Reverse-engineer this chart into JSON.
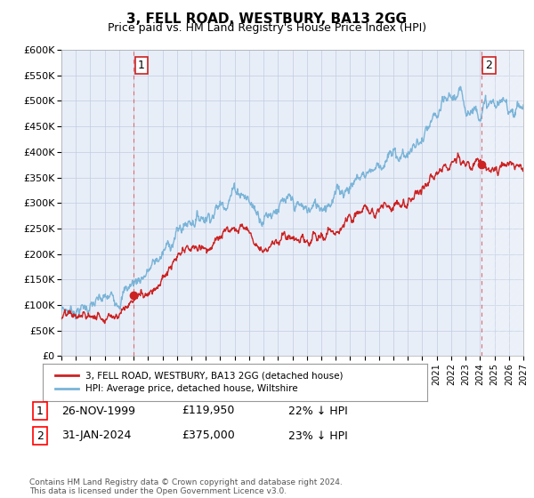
{
  "title": "3, FELL ROAD, WESTBURY, BA13 2GG",
  "subtitle": "Price paid vs. HM Land Registry's House Price Index (HPI)",
  "legend_line1": "3, FELL ROAD, WESTBURY, BA13 2GG (detached house)",
  "legend_line2": "HPI: Average price, detached house, Wiltshire",
  "footer": "Contains HM Land Registry data © Crown copyright and database right 2024.\nThis data is licensed under the Open Government Licence v3.0.",
  "sale1_label": "1",
  "sale1_date": "26-NOV-1999",
  "sale1_price": "£119,950",
  "sale1_hpi": "22% ↓ HPI",
  "sale2_label": "2",
  "sale2_date": "31-JAN-2024",
  "sale2_price": "£375,000",
  "sale2_hpi": "23% ↓ HPI",
  "ylim": [
    0,
    600000
  ],
  "yticks": [
    0,
    50000,
    100000,
    150000,
    200000,
    250000,
    300000,
    350000,
    400000,
    450000,
    500000,
    550000,
    600000
  ],
  "hpi_color": "#7ab4d8",
  "price_color": "#cc2222",
  "sale_marker_color": "#cc2222",
  "background_color": "#e8eef8",
  "grid_color": "#c0cce0",
  "sale1_x": 2000.0,
  "sale1_y": 119950,
  "sale2_x": 2024.08,
  "sale2_y": 375000,
  "xmin": 1995,
  "xmax": 2027,
  "future_start": 2024.08
}
